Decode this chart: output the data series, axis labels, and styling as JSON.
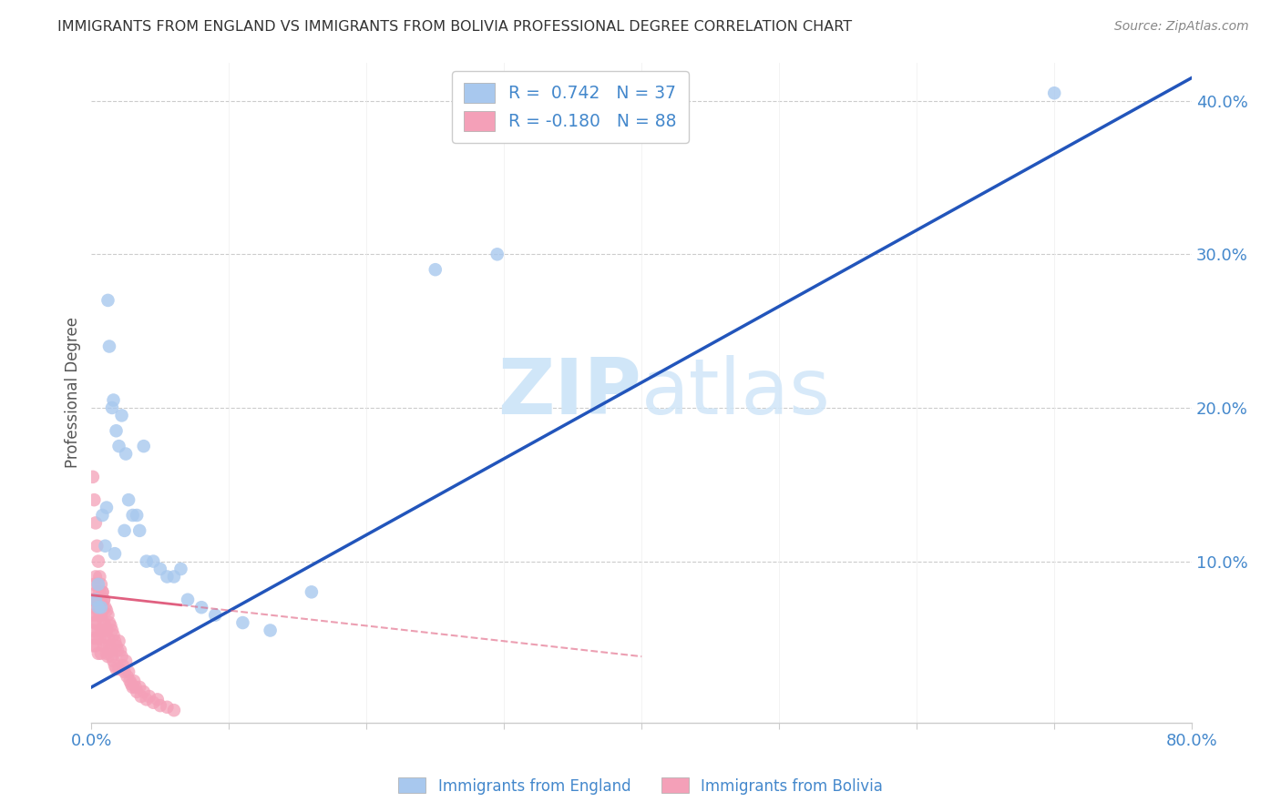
{
  "title": "IMMIGRANTS FROM ENGLAND VS IMMIGRANTS FROM BOLIVIA PROFESSIONAL DEGREE CORRELATION CHART",
  "source": "Source: ZipAtlas.com",
  "ylabel": "Professional Degree",
  "xlim": [
    0.0,
    0.8
  ],
  "ylim": [
    -0.005,
    0.425
  ],
  "england_color": "#A8C8EE",
  "bolivia_color": "#F4A0B8",
  "england_R": 0.742,
  "england_N": 37,
  "bolivia_R": -0.18,
  "bolivia_N": 88,
  "england_line_color": "#2255BB",
  "bolivia_line_color": "#E06080",
  "watermark_zip": "ZIP",
  "watermark_atlas": "atlas",
  "england_scatter_x": [
    0.003,
    0.005,
    0.007,
    0.008,
    0.01,
    0.011,
    0.012,
    0.013,
    0.015,
    0.016,
    0.017,
    0.018,
    0.02,
    0.022,
    0.024,
    0.025,
    0.027,
    0.03,
    0.033,
    0.035,
    0.038,
    0.04,
    0.045,
    0.05,
    0.055,
    0.06,
    0.065,
    0.07,
    0.08,
    0.09,
    0.11,
    0.13,
    0.16,
    0.25,
    0.295,
    0.7,
    0.005
  ],
  "england_scatter_y": [
    0.075,
    0.085,
    0.07,
    0.13,
    0.11,
    0.135,
    0.27,
    0.24,
    0.2,
    0.205,
    0.105,
    0.185,
    0.175,
    0.195,
    0.12,
    0.17,
    0.14,
    0.13,
    0.13,
    0.12,
    0.175,
    0.1,
    0.1,
    0.095,
    0.09,
    0.09,
    0.095,
    0.075,
    0.07,
    0.065,
    0.06,
    0.055,
    0.08,
    0.29,
    0.3,
    0.405,
    0.07
  ],
  "bolivia_scatter_x": [
    0.001,
    0.001,
    0.001,
    0.001,
    0.002,
    0.002,
    0.002,
    0.002,
    0.003,
    0.003,
    0.003,
    0.003,
    0.004,
    0.004,
    0.004,
    0.005,
    0.005,
    0.005,
    0.005,
    0.006,
    0.006,
    0.006,
    0.007,
    0.007,
    0.007,
    0.007,
    0.008,
    0.008,
    0.008,
    0.009,
    0.009,
    0.009,
    0.01,
    0.01,
    0.01,
    0.011,
    0.011,
    0.011,
    0.012,
    0.012,
    0.012,
    0.013,
    0.013,
    0.014,
    0.014,
    0.015,
    0.015,
    0.016,
    0.016,
    0.017,
    0.017,
    0.018,
    0.018,
    0.019,
    0.02,
    0.02,
    0.021,
    0.022,
    0.023,
    0.024,
    0.025,
    0.026,
    0.027,
    0.028,
    0.029,
    0.03,
    0.031,
    0.032,
    0.033,
    0.035,
    0.036,
    0.038,
    0.04,
    0.042,
    0.045,
    0.048,
    0.05,
    0.055,
    0.06,
    0.001,
    0.002,
    0.003,
    0.004,
    0.005,
    0.006,
    0.007,
    0.008,
    0.009
  ],
  "bolivia_scatter_y": [
    0.075,
    0.065,
    0.055,
    0.045,
    0.085,
    0.07,
    0.06,
    0.05,
    0.09,
    0.075,
    0.06,
    0.045,
    0.08,
    0.065,
    0.05,
    0.085,
    0.07,
    0.055,
    0.04,
    0.08,
    0.065,
    0.05,
    0.075,
    0.065,
    0.055,
    0.04,
    0.08,
    0.068,
    0.055,
    0.075,
    0.06,
    0.045,
    0.07,
    0.058,
    0.048,
    0.068,
    0.055,
    0.04,
    0.065,
    0.05,
    0.038,
    0.06,
    0.045,
    0.058,
    0.042,
    0.055,
    0.038,
    0.052,
    0.035,
    0.048,
    0.032,
    0.045,
    0.03,
    0.042,
    0.048,
    0.03,
    0.042,
    0.038,
    0.032,
    0.028,
    0.035,
    0.025,
    0.028,
    0.022,
    0.02,
    0.018,
    0.022,
    0.018,
    0.015,
    0.018,
    0.012,
    0.015,
    0.01,
    0.012,
    0.008,
    0.01,
    0.006,
    0.005,
    0.003,
    0.155,
    0.14,
    0.125,
    0.11,
    0.1,
    0.09,
    0.085,
    0.08,
    0.075
  ],
  "eng_line_x0": 0.0,
  "eng_line_y0": 0.018,
  "eng_line_x1": 0.8,
  "eng_line_y1": 0.415,
  "bol_line_x0": 0.0,
  "bol_line_y0": 0.078,
  "bol_line_x1": 0.4,
  "bol_line_y1": 0.038,
  "bol_line_solid_end": 0.065,
  "gridline_color": "#CCCCCC",
  "spine_color": "#CCCCCC",
  "tick_label_color": "#4488CC",
  "ylabel_color": "#555555",
  "title_color": "#333333",
  "source_color": "#888888",
  "watermark_color": "#D0E6F8"
}
